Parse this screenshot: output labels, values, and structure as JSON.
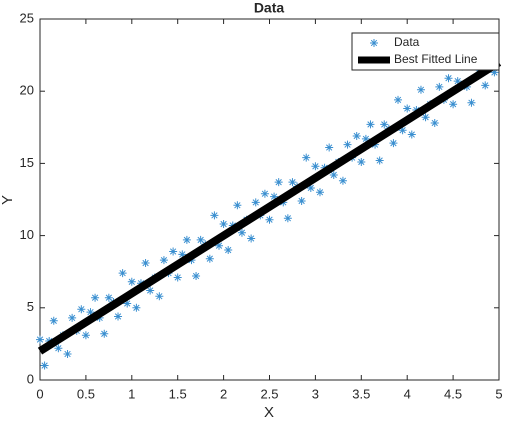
{
  "chart_data": {
    "type": "scatter",
    "title": "Data",
    "xlabel": "X",
    "ylabel": "Y",
    "xlim": [
      0,
      5
    ],
    "ylim": [
      0,
      25
    ],
    "xticks": [
      0,
      0.5,
      1,
      1.5,
      2,
      2.5,
      3,
      3.5,
      4,
      4.5,
      5
    ],
    "yticks": [
      0,
      5,
      10,
      15,
      20,
      25
    ],
    "legend": "northeast",
    "series": [
      {
        "name": "Data",
        "color": "#3a8fd0",
        "marker": "*",
        "x": [
          0,
          0.05,
          0.1,
          0.15,
          0.2,
          0.25,
          0.3,
          0.35,
          0.4,
          0.45,
          0.5,
          0.55,
          0.6,
          0.65,
          0.7,
          0.75,
          0.8,
          0.85,
          0.9,
          0.95,
          1,
          1.05,
          1.1,
          1.15,
          1.2,
          1.25,
          1.3,
          1.35,
          1.4,
          1.45,
          1.5,
          1.55,
          1.6,
          1.65,
          1.7,
          1.75,
          1.8,
          1.85,
          1.9,
          1.95,
          2,
          2.05,
          2.1,
          2.15,
          2.2,
          2.25,
          2.3,
          2.35,
          2.4,
          2.45,
          2.5,
          2.55,
          2.6,
          2.65,
          2.7,
          2.75,
          2.8,
          2.85,
          2.9,
          2.95,
          3,
          3.05,
          3.1,
          3.15,
          3.2,
          3.25,
          3.3,
          3.35,
          3.4,
          3.45,
          3.5,
          3.55,
          3.6,
          3.65,
          3.7,
          3.75,
          3.8,
          3.85,
          3.9,
          3.95,
          4,
          4.05,
          4.1,
          4.15,
          4.2,
          4.25,
          4.3,
          4.35,
          4.4,
          4.45,
          4.5,
          4.55,
          4.6,
          4.65,
          4.7,
          4.75,
          4.8,
          4.85,
          4.9,
          4.95
        ],
        "values": [
          2.8,
          1.0,
          2.7,
          4.1,
          2.2,
          3.1,
          1.8,
          4.3,
          3.4,
          4.9,
          3.1,
          4.7,
          5.7,
          4.3,
          3.2,
          5.7,
          5.4,
          4.4,
          7.4,
          5.3,
          6.8,
          5.0,
          6.7,
          8.1,
          6.2,
          7.1,
          5.8,
          8.3,
          7.4,
          8.9,
          7.1,
          8.7,
          9.7,
          8.3,
          7.2,
          9.7,
          9.4,
          8.4,
          11.4,
          9.3,
          10.8,
          9.0,
          10.7,
          12.1,
          10.2,
          11.1,
          9.8,
          12.3,
          11.4,
          12.9,
          11.1,
          12.7,
          13.7,
          12.3,
          11.2,
          13.7,
          13.4,
          12.4,
          15.4,
          13.3,
          14.8,
          13.0,
          14.7,
          16.1,
          14.2,
          15.1,
          13.8,
          16.3,
          15.4,
          16.9,
          15.1,
          16.7,
          17.7,
          16.3,
          15.2,
          17.7,
          17.4,
          16.4,
          19.4,
          17.3,
          18.8,
          17.0,
          18.7,
          20.1,
          18.2,
          19.1,
          17.8,
          20.3,
          19.4,
          20.9,
          19.1,
          20.7,
          21.7,
          20.3,
          19.2,
          21.7,
          21.4,
          20.4,
          23.4,
          21.3
        ]
      },
      {
        "name": "Best Fitted Line",
        "color": "#000000",
        "marker": "line",
        "x": [
          0,
          5
        ],
        "values": [
          2,
          22
        ]
      }
    ]
  }
}
